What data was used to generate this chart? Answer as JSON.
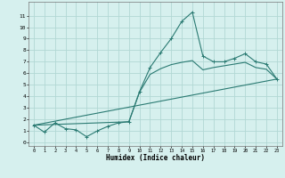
{
  "title": "",
  "xlabel": "Humidex (Indice chaleur)",
  "xlim": [
    -0.5,
    23.5
  ],
  "ylim": [
    -0.3,
    12.2
  ],
  "xticks": [
    0,
    1,
    2,
    3,
    4,
    5,
    6,
    7,
    8,
    9,
    10,
    11,
    12,
    13,
    14,
    15,
    16,
    17,
    18,
    19,
    20,
    21,
    22,
    23
  ],
  "yticks": [
    0,
    1,
    2,
    3,
    4,
    5,
    6,
    7,
    8,
    9,
    10,
    11
  ],
  "bg_color": "#d6f0ee",
  "grid_color": "#b2d8d4",
  "line_color": "#2a7a72",
  "main_line_x": [
    0,
    1,
    2,
    3,
    4,
    5,
    6,
    7,
    8,
    9,
    10,
    11,
    12,
    13,
    14,
    15,
    16,
    17,
    18,
    19,
    20,
    21,
    22,
    23
  ],
  "main_line_y": [
    1.5,
    0.9,
    1.7,
    1.2,
    1.1,
    0.5,
    1.0,
    1.4,
    1.7,
    1.8,
    4.4,
    6.5,
    7.8,
    9.0,
    10.5,
    11.3,
    7.5,
    7.0,
    7.0,
    7.3,
    7.7,
    7.0,
    6.8,
    5.5
  ],
  "line2_x": [
    0,
    9,
    10,
    11,
    12,
    13,
    14,
    15,
    16,
    17,
    18,
    19,
    20,
    21,
    22,
    23
  ],
  "line2_y": [
    1.5,
    1.8,
    4.35,
    5.9,
    6.4,
    6.75,
    6.95,
    7.1,
    6.3,
    6.5,
    6.65,
    6.8,
    6.95,
    6.5,
    6.35,
    5.5
  ],
  "line3_x": [
    0,
    23
  ],
  "line3_y": [
    1.5,
    5.5
  ]
}
